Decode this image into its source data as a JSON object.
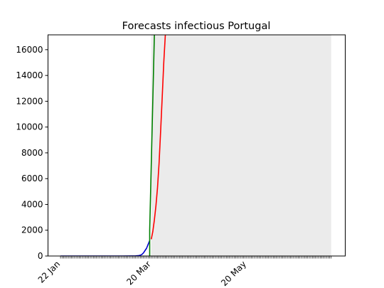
{
  "chart_data": {
    "type": "line",
    "title": "Forecasts infectious Portugal",
    "xlabel": "",
    "ylabel": "",
    "x_tick_labels": [
      "22 Jan",
      "20 Mar",
      "20 May"
    ],
    "x_tick_positions_day": [
      0,
      58,
      119
    ],
    "x_range_day": [
      -8,
      182
    ],
    "y_ticks": [
      0,
      2000,
      4000,
      6000,
      8000,
      10000,
      12000,
      14000,
      16000
    ],
    "ylim": [
      0,
      17150
    ],
    "forecast_shade_day_range": [
      58,
      173
    ],
    "daily_minor_ticks_day_range": [
      0,
      173
    ],
    "grid": false,
    "series": [
      {
        "color": "#0000cc",
        "x_day": [
          0,
          5,
          10,
          15,
          20,
          25,
          30,
          35,
          40,
          45,
          48,
          50,
          51,
          52,
          53,
          54,
          55,
          56,
          57
        ],
        "y": [
          0,
          0,
          0,
          0,
          0,
          0,
          0,
          0,
          0,
          2,
          10,
          30,
          60,
          120,
          240,
          420,
          600,
          900,
          1200
        ]
      },
      {
        "color": "#008000",
        "x_day": [
          57,
          57,
          60
        ],
        "y": [
          0,
          2000,
          17150
        ]
      },
      {
        "color": "#ff0000",
        "x_day": [
          58,
          59,
          60,
          61,
          62,
          63,
          64,
          65,
          66,
          67
        ],
        "y": [
          1300,
          1900,
          2800,
          3900,
          5300,
          7200,
          9700,
          12300,
          15000,
          17150
        ]
      }
    ]
  }
}
